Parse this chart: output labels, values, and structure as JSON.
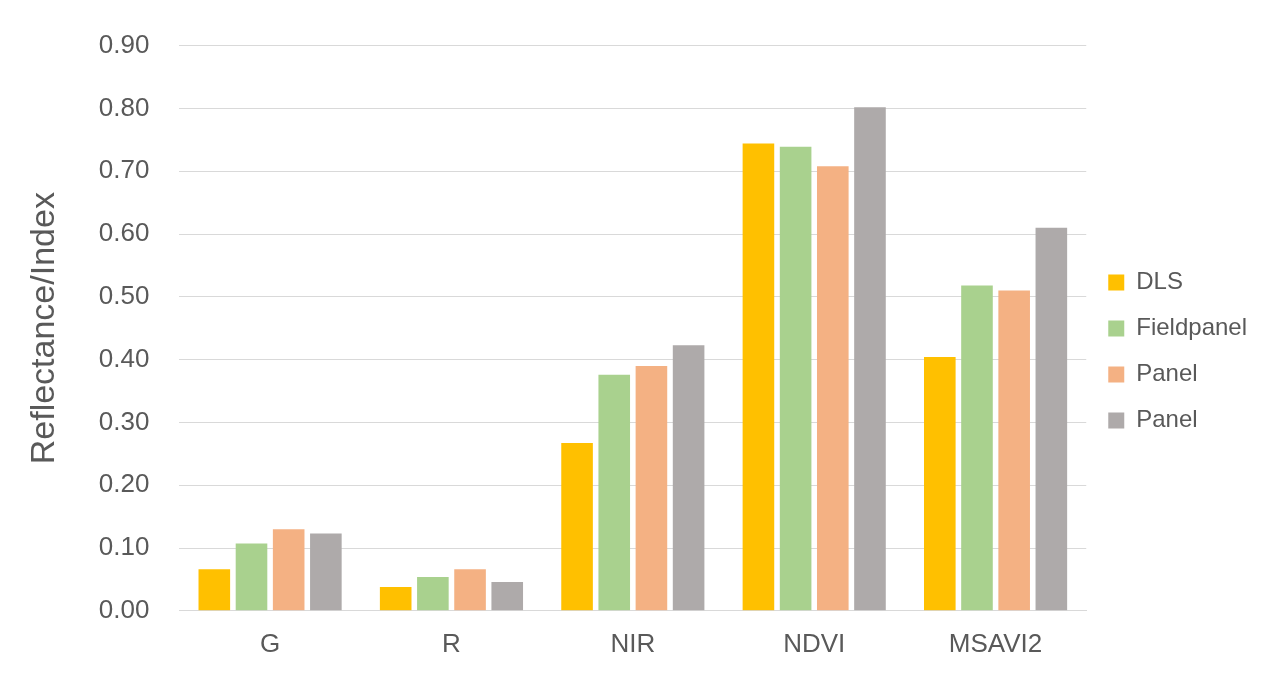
{
  "chart_data": {
    "type": "bar",
    "ylabel": "Reflectance/Index",
    "categories": [
      "G",
      "R",
      "NIR",
      "NDVI",
      "MSAVI2"
    ],
    "series": [
      {
        "name": "DLS",
        "color": "#ffc000",
        "values": [
          0.066,
          0.038,
          0.267,
          0.744,
          0.404
        ]
      },
      {
        "name": "Fieldpanel",
        "color": "#a9d18e",
        "values": [
          0.107,
          0.054,
          0.376,
          0.739,
          0.518
        ]
      },
      {
        "name": "Panel",
        "color": "#f4b183",
        "values": [
          0.13,
          0.066,
          0.39,
          0.708,
          0.51
        ]
      },
      {
        "name": "Panel",
        "color": "#aeaaaa",
        "values": [
          0.123,
          0.046,
          0.423,
          0.802,
          0.61
        ]
      }
    ],
    "ylim": [
      0,
      0.9
    ],
    "yticks": [
      {
        "value": 0,
        "label": "0.00"
      },
      {
        "value": 0.1,
        "label": "0.10"
      },
      {
        "value": 0.2,
        "label": "0.20"
      },
      {
        "value": 0.3,
        "label": "0.30"
      },
      {
        "value": 0.4,
        "label": "0.40"
      },
      {
        "value": 0.5,
        "label": "0.50"
      },
      {
        "value": 0.6,
        "label": "0.60"
      },
      {
        "value": 0.7,
        "label": "0.70"
      },
      {
        "value": 0.8,
        "label": "0.80"
      },
      {
        "value": 0.9,
        "label": "0.90"
      }
    ],
    "grid": "y",
    "legend": "right"
  }
}
